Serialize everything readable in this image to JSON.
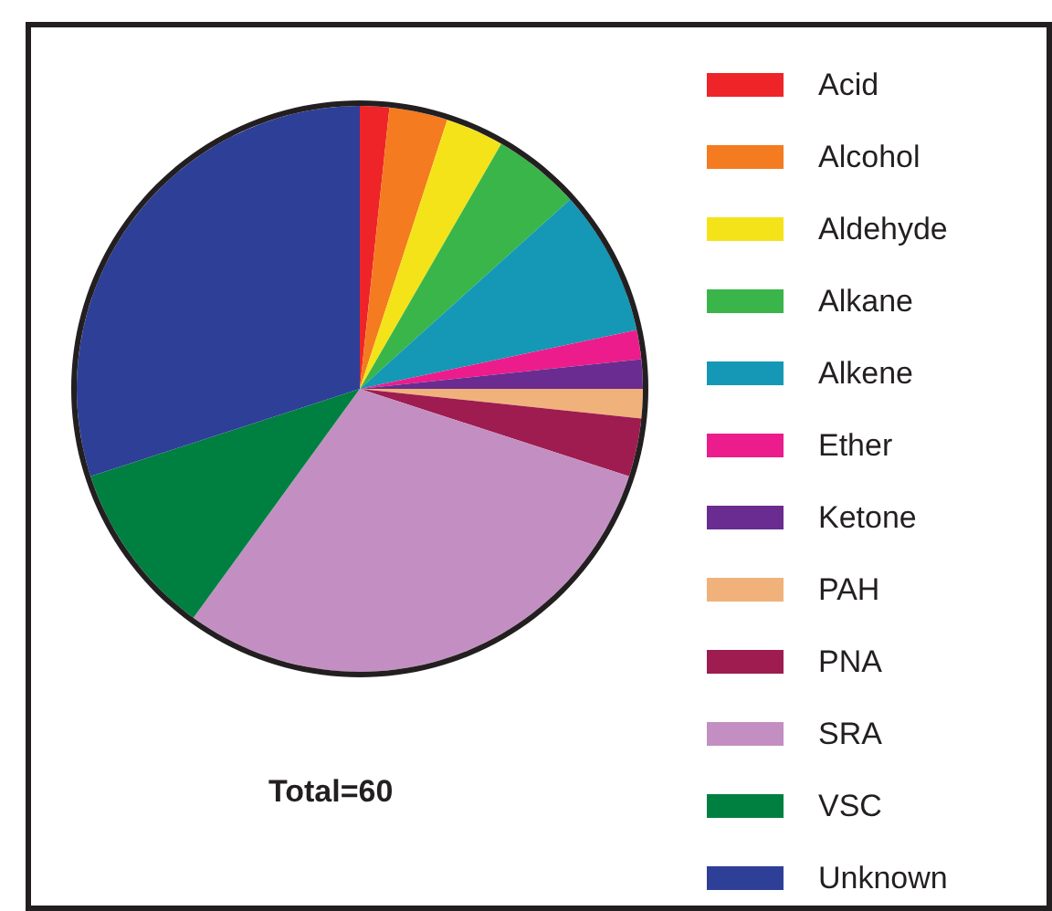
{
  "chart_data": {
    "type": "pie",
    "categories": [
      "Acid",
      "Alcohol",
      "Aldehyde",
      "Alkane",
      "Alkene",
      "Ether",
      "Ketone",
      "PAH",
      "PNA",
      "SRA",
      "VSC",
      "Unknown"
    ],
    "values": [
      1.67,
      3.33,
      3.33,
      5,
      8.33,
      1.67,
      1.67,
      1.67,
      3.33,
      30,
      10,
      30
    ],
    "colors": [
      "#ee2428",
      "#f47b20",
      "#f5e31a",
      "#3ab54a",
      "#1498b5",
      "#ec1c8c",
      "#6a2c90",
      "#f0b27a",
      "#9e1c4f",
      "#c38fc2",
      "#008040",
      "#2e3f97"
    ],
    "annotations": [
      "Total=60"
    ],
    "legend": "right"
  }
}
